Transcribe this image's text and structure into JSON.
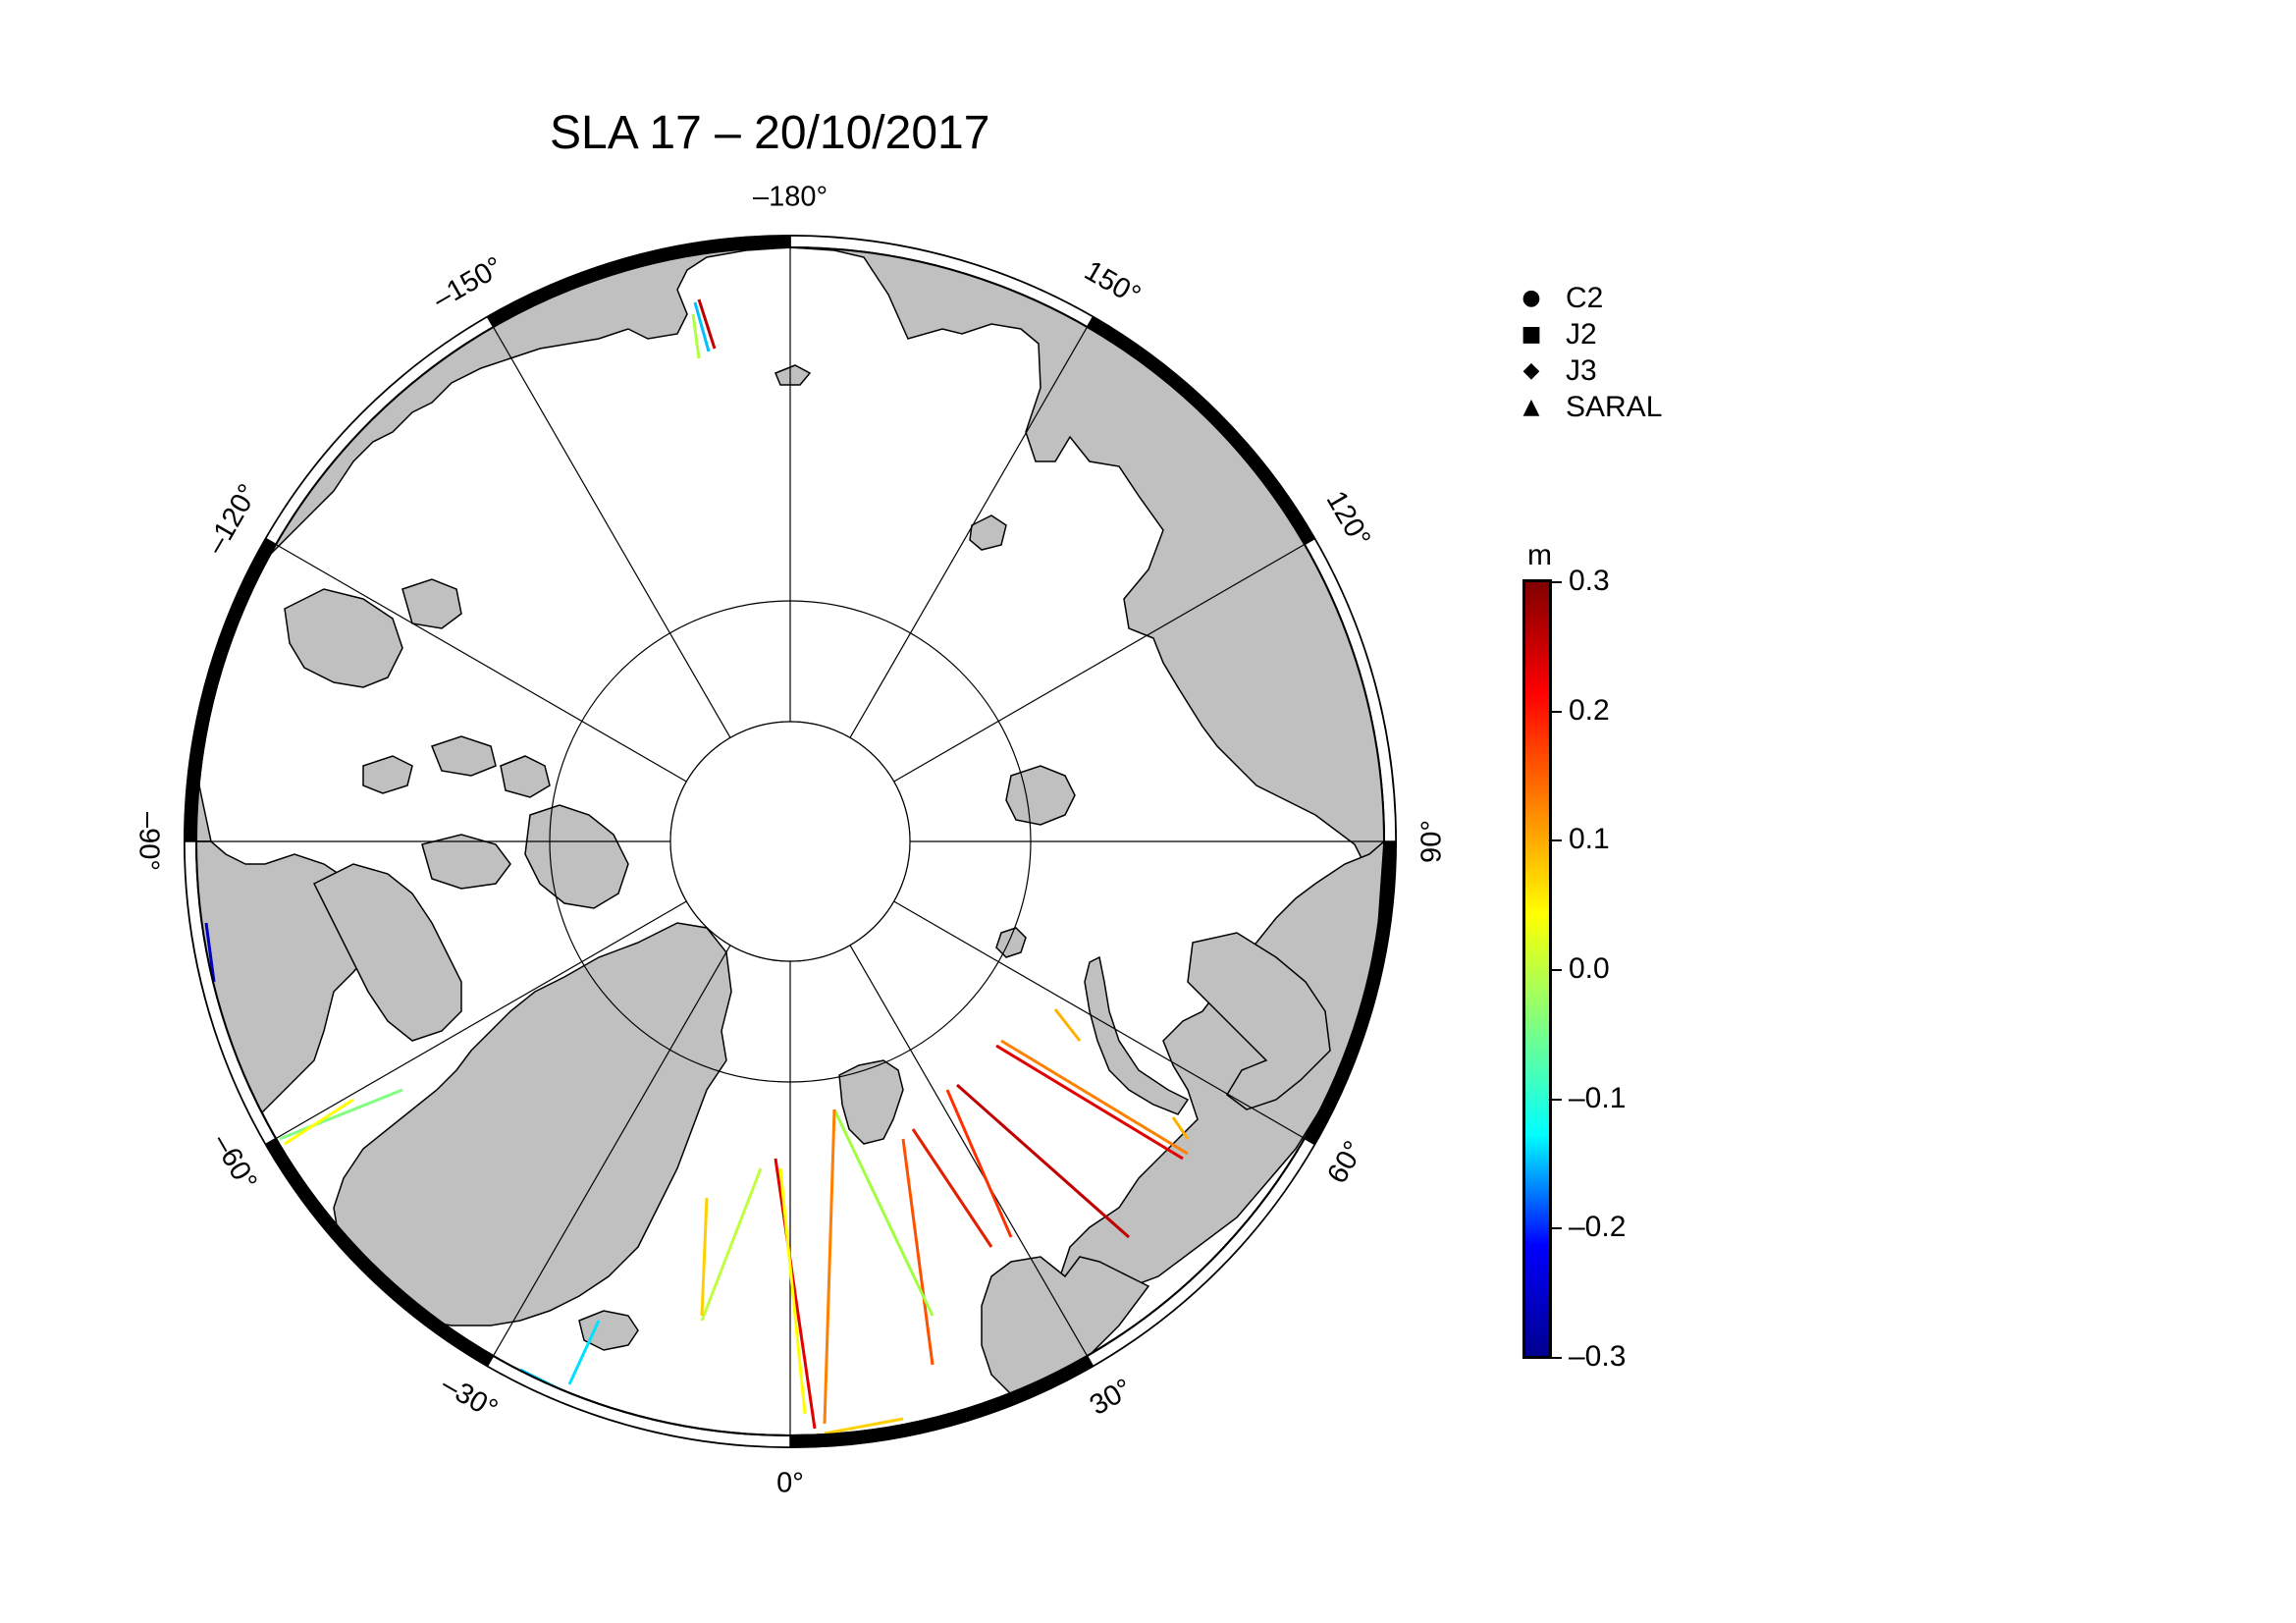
{
  "title": "SLA 17 – 20/10/2017",
  "longitude_labels": [
    {
      "text": "–180°",
      "lon": 180
    },
    {
      "text": "150°",
      "lon": 150
    },
    {
      "text": "120°",
      "lon": 120
    },
    {
      "text": "90°",
      "lon": 90
    },
    {
      "text": "60°",
      "lon": 60
    },
    {
      "text": "30°",
      "lon": 30
    },
    {
      "text": "0°",
      "lon": 0
    },
    {
      "text": "–30°",
      "lon": -30
    },
    {
      "text": "–60°",
      "lon": -60
    },
    {
      "text": "–90°",
      "lon": -90
    },
    {
      "text": "–120°",
      "lon": -120
    },
    {
      "text": "–150°",
      "lon": -150
    }
  ],
  "legend": {
    "items": [
      {
        "symbol": "circle-icon",
        "glyph": "●",
        "label": "C2"
      },
      {
        "symbol": "square-icon",
        "glyph": "■",
        "label": "J2"
      },
      {
        "symbol": "diamond-icon",
        "glyph": "◆",
        "label": "J3"
      },
      {
        "symbol": "triangle-icon",
        "glyph": "▲",
        "label": "SARAL"
      }
    ]
  },
  "colorbar": {
    "unit": "m",
    "min": -0.3,
    "max": 0.3,
    "ticks": [
      {
        "value": 0.3,
        "label": "0.3"
      },
      {
        "value": 0.2,
        "label": "0.2"
      },
      {
        "value": 0.1,
        "label": "0.1"
      },
      {
        "value": 0.0,
        "label": "0.0"
      },
      {
        "value": -0.1,
        "label": "–0.1"
      },
      {
        "value": -0.2,
        "label": "–0.2"
      },
      {
        "value": -0.3,
        "label": "–0.3"
      }
    ],
    "colors": [
      "#00008f",
      "#0000ff",
      "#00ffff",
      "#80ff80",
      "#ffff00",
      "#ff8000",
      "#ff0000",
      "#800000"
    ]
  },
  "map": {
    "projection": "polar-stereographic-north",
    "land_color": "#c0c0c0",
    "ocean_color": "#ffffff",
    "meridians_deg": [
      0,
      30,
      60,
      90,
      120,
      150,
      180,
      -150,
      -120,
      -90,
      -60,
      -30
    ],
    "parallels_deg": [
      70,
      80
    ]
  }
}
